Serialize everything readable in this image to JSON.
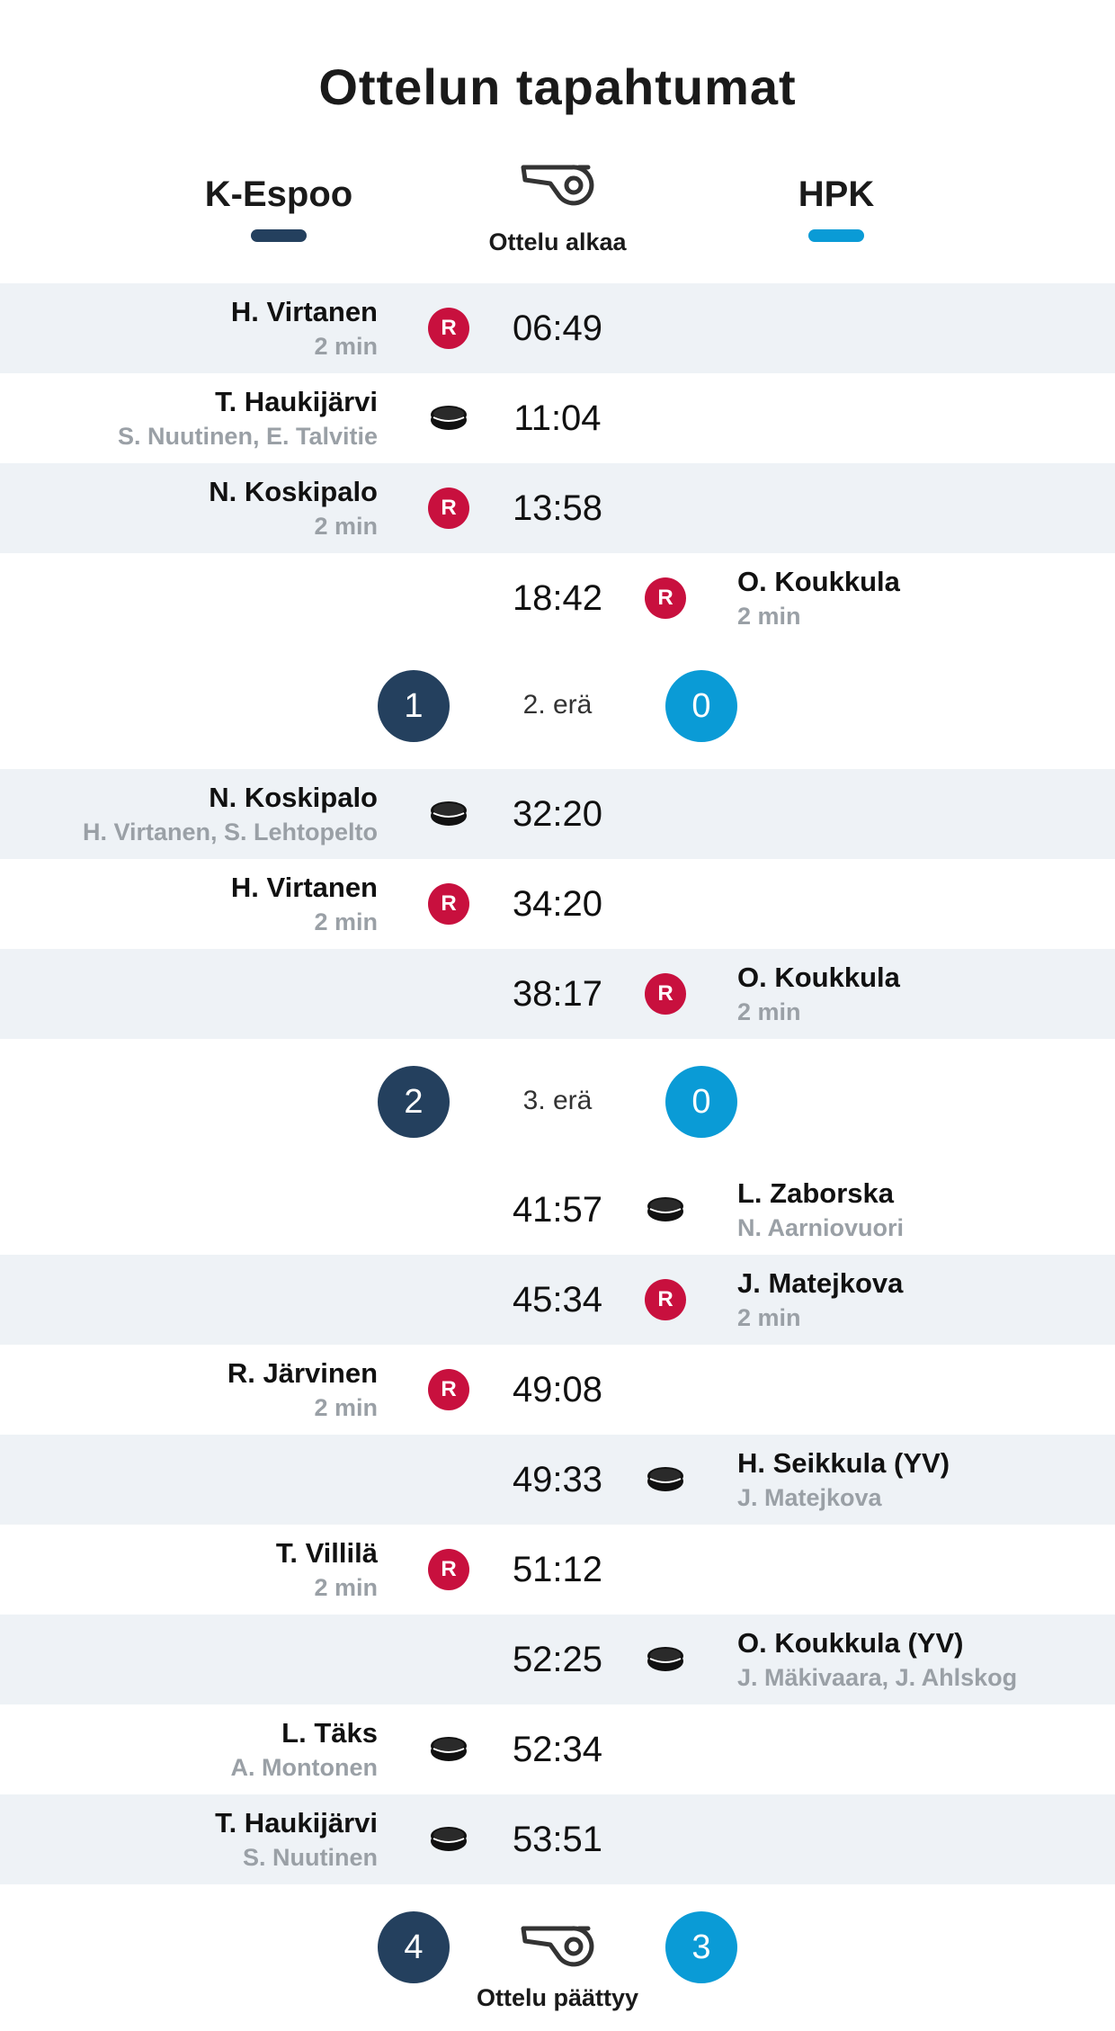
{
  "title": "Ottelun tapahtumat",
  "teams": {
    "home": {
      "name": "K-Espoo",
      "color": "#24405e"
    },
    "away": {
      "name": "HPK",
      "color": "#0a9bd6"
    }
  },
  "start_label": "Ottelu alkaa",
  "end_label": "Ottelu päättyy",
  "penalty_badge": "R",
  "icons": {
    "whistle": "whistle-icon",
    "goal": "puck-icon",
    "penalty": "penalty-badge"
  },
  "events": [
    {
      "side": "left",
      "type": "penalty",
      "time": "06:49",
      "player": "H. Virtanen",
      "detail": "2 min"
    },
    {
      "side": "left",
      "type": "goal",
      "time": "11:04",
      "player": "T. Haukijärvi",
      "detail": "S. Nuutinen, E. Talvitie"
    },
    {
      "side": "left",
      "type": "penalty",
      "time": "13:58",
      "player": "N. Koskipalo",
      "detail": "2 min"
    },
    {
      "side": "right",
      "type": "penalty",
      "time": "18:42",
      "player": "O. Koukkula",
      "detail": "2 min"
    },
    {
      "side": "left",
      "type": "goal",
      "time": "32:20",
      "player": "N. Koskipalo",
      "detail": "H. Virtanen, S. Lehtopelto"
    },
    {
      "side": "left",
      "type": "penalty",
      "time": "34:20",
      "player": "H. Virtanen",
      "detail": "2 min"
    },
    {
      "side": "right",
      "type": "penalty",
      "time": "38:17",
      "player": "O. Koukkula",
      "detail": "2 min"
    },
    {
      "side": "right",
      "type": "goal",
      "time": "41:57",
      "player": "L. Zaborska",
      "detail": "N. Aarniovuori"
    },
    {
      "side": "right",
      "type": "penalty",
      "time": "45:34",
      "player": "J. Matejkova",
      "detail": "2 min"
    },
    {
      "side": "left",
      "type": "penalty",
      "time": "49:08",
      "player": "R. Järvinen",
      "detail": "2 min"
    },
    {
      "side": "right",
      "type": "goal",
      "time": "49:33",
      "player": "H. Seikkula (YV)",
      "detail": "J. Matejkova"
    },
    {
      "side": "left",
      "type": "penalty",
      "time": "51:12",
      "player": "T. Villilä",
      "detail": "2 min"
    },
    {
      "side": "right",
      "type": "goal",
      "time": "52:25",
      "player": "O. Koukkula (YV)",
      "detail": "J. Mäkivaara, J. Ahlskog"
    },
    {
      "side": "left",
      "type": "goal",
      "time": "52:34",
      "player": "L. Täks",
      "detail": "A. Montonen"
    },
    {
      "side": "left",
      "type": "goal",
      "time": "53:51",
      "player": "T. Haukijärvi",
      "detail": "S. Nuutinen"
    }
  ],
  "periods": [
    {
      "label": "2. erä",
      "home_score": "1",
      "away_score": "0"
    },
    {
      "label": "3. erä",
      "home_score": "2",
      "away_score": "0"
    }
  ],
  "final": {
    "home_score": "4",
    "away_score": "3"
  }
}
